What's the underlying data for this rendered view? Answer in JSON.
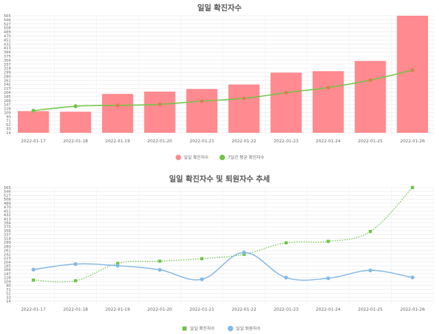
{
  "chart_data": [
    {
      "type": "bar",
      "title": "일일 확진자수",
      "categories": [
        "2022-01-17",
        "2022-01-18",
        "2022-01-19",
        "2022-01-20",
        "2022-01-21",
        "2022-01-22",
        "2022-01-23",
        "2022-01-24",
        "2022-01-25",
        "2022-01-26"
      ],
      "y_ticks": [
        14,
        33,
        52,
        71,
        90,
        109,
        128,
        147,
        166,
        185,
        204,
        223,
        242,
        261,
        280,
        299,
        318,
        337,
        356,
        375,
        394,
        413,
        432,
        451,
        470,
        489,
        508,
        527,
        546,
        565
      ],
      "ylim": [
        14,
        565
      ],
      "grid": true,
      "legend": "bottom",
      "series": [
        {
          "name": "일일 확진자수",
          "type": "bar",
          "color": "#ff8a8f",
          "values": [
            116,
            113,
            197,
            208,
            220,
            241,
            297,
            304,
            352,
            565
          ]
        },
        {
          "name": "7일간 평균 확진자수",
          "type": "line",
          "color": "#6cc644",
          "point_color": "#d98050",
          "values": [
            118,
            139,
            143,
            148,
            163,
            176,
            203,
            227,
            262,
            309
          ]
        }
      ]
    },
    {
      "type": "line",
      "title": "일일 확진자수 및 퇴원자수 추세",
      "categories": [
        "2022-01-17",
        "2022-01-18",
        "2022-01-19",
        "2022-01-20",
        "2022-01-21",
        "2022-01-22",
        "2022-01-23",
        "2022-01-24",
        "2022-01-25",
        "2022-01-26"
      ],
      "y_ticks": [
        14,
        33,
        52,
        71,
        90,
        109,
        128,
        147,
        166,
        185,
        204,
        223,
        242,
        261,
        280,
        299,
        318,
        337,
        356,
        375,
        394,
        413,
        432,
        451,
        470,
        489,
        508,
        527,
        546,
        565
      ],
      "ylim": [
        14,
        565
      ],
      "grid": true,
      "legend": "bottom",
      "series": [
        {
          "name": "일일 확진자수",
          "style": "dotted",
          "marker": "square",
          "color": "#6cc644",
          "values": [
            116,
            113,
            197,
            208,
            220,
            241,
            297,
            304,
            352,
            565
          ]
        },
        {
          "name": "일일 퇴원자수",
          "style": "solid",
          "marker": "circle",
          "color": "#85b9e6",
          "values": [
            167,
            194,
            186,
            166,
            120,
            250,
            128,
            125,
            163,
            129
          ]
        }
      ]
    }
  ]
}
